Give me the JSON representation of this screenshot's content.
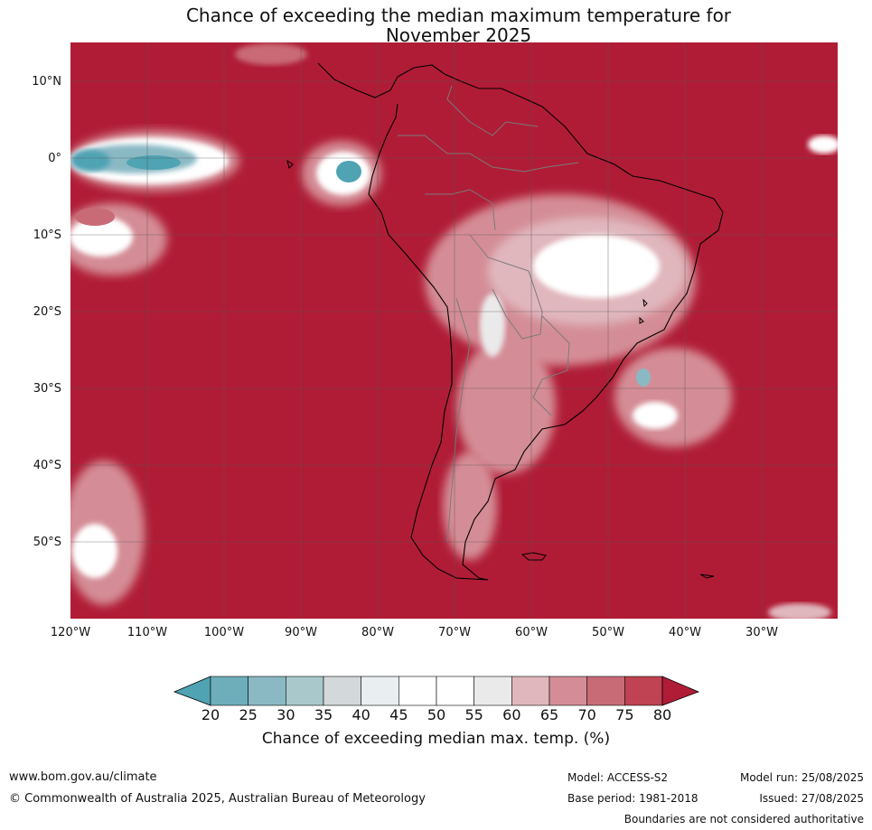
{
  "title": {
    "line1": "Chance of exceeding the median maximum temperature for",
    "line2": "November 2025"
  },
  "map": {
    "lat_labels": [
      "10°N",
      "0°",
      "10°S",
      "20°S",
      "30°S",
      "40°S",
      "50°S"
    ],
    "lon_labels": [
      "120°W",
      "110°W",
      "100°W",
      "90°W",
      "80°W",
      "70°W",
      "60°W",
      "50°W",
      "40°W",
      "30°W"
    ],
    "ocean_color": "#b01c36"
  },
  "colorbar": {
    "ticks": [
      "20",
      "25",
      "30",
      "35",
      "40",
      "45",
      "50",
      "55",
      "60",
      "65",
      "70",
      "75",
      "80"
    ],
    "colors": [
      "#4fa3b3",
      "#6daeba",
      "#8ab9c4",
      "#a9c8cb",
      "#d3d9da",
      "#e9eff1",
      "#ffffff",
      "#ffffff",
      "#ebeaeb",
      "#e0b7bd",
      "#d48d96",
      "#c96b76",
      "#bf4352",
      "#b01c36"
    ],
    "title": "Chance of exceeding median max. temp. (%)"
  },
  "footer": {
    "website": "www.bom.gov.au/climate",
    "copyright": "© Commonwealth of Australia 2025, Australian Bureau of Meteorology",
    "model": "Model: ACCESS-S2",
    "base_period": "Base period: 1981-2018",
    "model_run": "Model run: 25/08/2025",
    "issued": "Issued: 27/08/2025",
    "disclaimer": "Boundaries are not considered authoritative"
  }
}
